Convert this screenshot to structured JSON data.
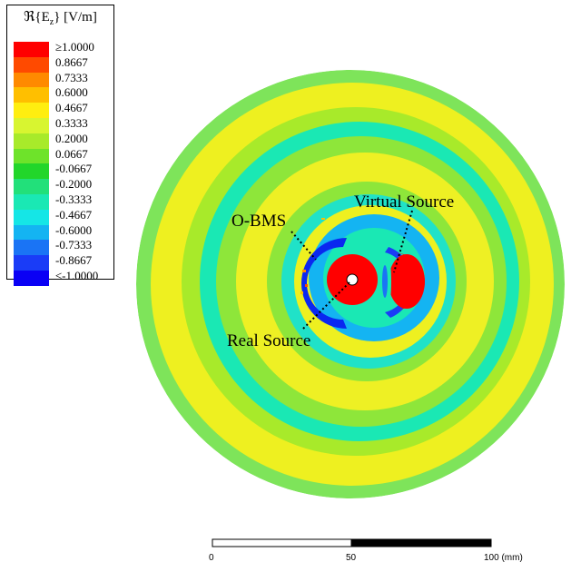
{
  "legend": {
    "title_prefix": "ℜ{E",
    "title_sub": "z",
    "title_suffix": "} [V/m]",
    "levels": [
      {
        "label": "≥1.0000",
        "color": "#ff0000"
      },
      {
        "label": "0.8667",
        "color": "#ff4a00"
      },
      {
        "label": "0.7333",
        "color": "#ff8a00"
      },
      {
        "label": "0.6000",
        "color": "#ffbf00"
      },
      {
        "label": "0.4667",
        "color": "#ffee10"
      },
      {
        "label": "0.3333",
        "color": "#d8f530"
      },
      {
        "label": "0.2000",
        "color": "#a8ea2a"
      },
      {
        "label": "0.0667",
        "color": "#6ee32a"
      },
      {
        "label": "-0.0667",
        "color": "#22d62a"
      },
      {
        "label": "-0.2000",
        "color": "#22e07a"
      },
      {
        "label": "-0.3333",
        "color": "#1ae8b4"
      },
      {
        "label": "-0.4667",
        "color": "#15e6e6"
      },
      {
        "label": "-0.6000",
        "color": "#14b4f2"
      },
      {
        "label": "-0.7333",
        "color": "#1a74f5"
      },
      {
        "label": "-0.8667",
        "color": "#1a3cf7"
      },
      {
        "label": "≤-1.0000",
        "color": "#0a00f5"
      }
    ]
  },
  "annotations": {
    "virtual_source": "Virtual Source",
    "obms": "O-BMS",
    "real_source": "Real Source"
  },
  "scale_bar": {
    "label_0": "0",
    "label_50": "50",
    "label_100": "100 (mm)"
  },
  "field_rings": [
    {
      "name": "outer-rim",
      "color": "#7ee45a"
    },
    {
      "name": "yellow-1",
      "color": "#f2f020"
    },
    {
      "name": "green-1",
      "color": "#a8ea2a"
    },
    {
      "name": "cyan-1",
      "color": "#1ae8b4"
    },
    {
      "name": "yellow-2",
      "color": "#eef024"
    },
    {
      "name": "green-2",
      "color": "#8ee63a"
    },
    {
      "name": "cyan-2",
      "color": "#20e2c8"
    },
    {
      "name": "yellow-3",
      "color": "#eef020"
    },
    {
      "name": "inner-blue",
      "color": "#14b4f2"
    }
  ]
}
